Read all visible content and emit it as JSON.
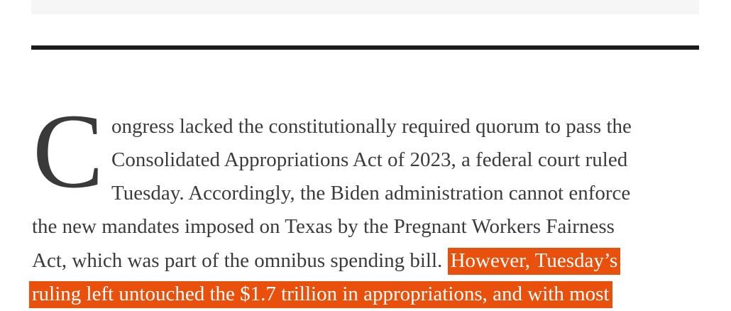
{
  "article": {
    "drop_cap": "C",
    "lines": [
      "ongress lacked the constitutionally required quorum to pass the",
      "Consolidated Appropriations Act of 2023, a federal court ruled",
      "Tuesday. Accordingly, the Biden administration cannot enforce",
      "the new mandates imposed on Texas by the Pregnant Workers Fairness",
      "Act, which was part of the omnibus spending bill."
    ],
    "highlighted": [
      "However, Tuesday’s",
      "ruling left untouched the $1.7 trillion in appropriations, and with most"
    ],
    "highlight_color": "#e8500c"
  }
}
